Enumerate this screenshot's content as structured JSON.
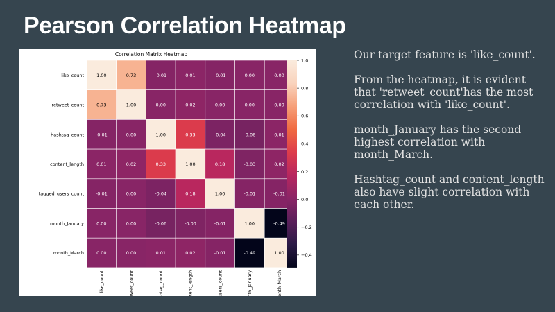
{
  "slide": {
    "title": "Pearson Correlation Heatmap",
    "notes": [
      "Our target feature is 'like_count'.",
      "From the heatmap, it is evident that 'retweet_count'has the most correlation with 'like_count'.",
      "month_January has the second highest correlation with month_March.",
      "Hashtag_count and content_length also have slight correlation with each other."
    ]
  },
  "chart_data": {
    "type": "heatmap",
    "title": "Correlation Matrix Heatmap",
    "labels": [
      "like_count",
      "retweet_count",
      "hashtag_count",
      "content_length",
      "tagged_users_count",
      "month_January",
      "month_March"
    ],
    "values": [
      [
        1.0,
        0.73,
        -0.01,
        0.01,
        -0.01,
        0.0,
        0.0
      ],
      [
        0.73,
        1.0,
        0.0,
        0.02,
        0.0,
        0.0,
        0.0
      ],
      [
        -0.01,
        0.0,
        1.0,
        0.33,
        -0.04,
        -0.06,
        0.01
      ],
      [
        0.01,
        0.02,
        0.33,
        1.0,
        0.18,
        -0.03,
        0.02
      ],
      [
        -0.01,
        0.0,
        -0.04,
        0.18,
        1.0,
        -0.01,
        -0.01
      ],
      [
        0.0,
        0.0,
        -0.06,
        -0.03,
        -0.01,
        1.0,
        -0.49
      ],
      [
        0.0,
        0.0,
        0.01,
        0.02,
        -0.01,
        -0.49,
        1.0
      ]
    ],
    "colorbar": {
      "range": [
        -0.49,
        1.0
      ],
      "ticks": [
        1.0,
        0.8,
        0.6,
        0.4,
        0.2,
        0.0,
        -0.2,
        -0.4
      ],
      "tick_labels": [
        "1.0",
        "0.8",
        "0.6",
        "0.4",
        "0.2",
        "0.0",
        "−0.2",
        "−0.4"
      ]
    },
    "colormap": [
      "#03051a",
      "#2b1a46",
      "#5a1f5a",
      "#8a2566",
      "#b7265f",
      "#dd3c4b",
      "#f06a41",
      "#f6a079",
      "#f9d3bd",
      "#faebdd"
    ]
  }
}
